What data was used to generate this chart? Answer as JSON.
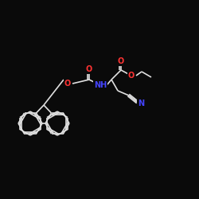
{
  "background": "#0a0a0a",
  "bond_color": "#e0e0e0",
  "atom_colors": {
    "O": "#ff3333",
    "N": "#4444ff",
    "C": "#e0e0e0"
  },
  "font_size": 7,
  "line_width": 1.2
}
